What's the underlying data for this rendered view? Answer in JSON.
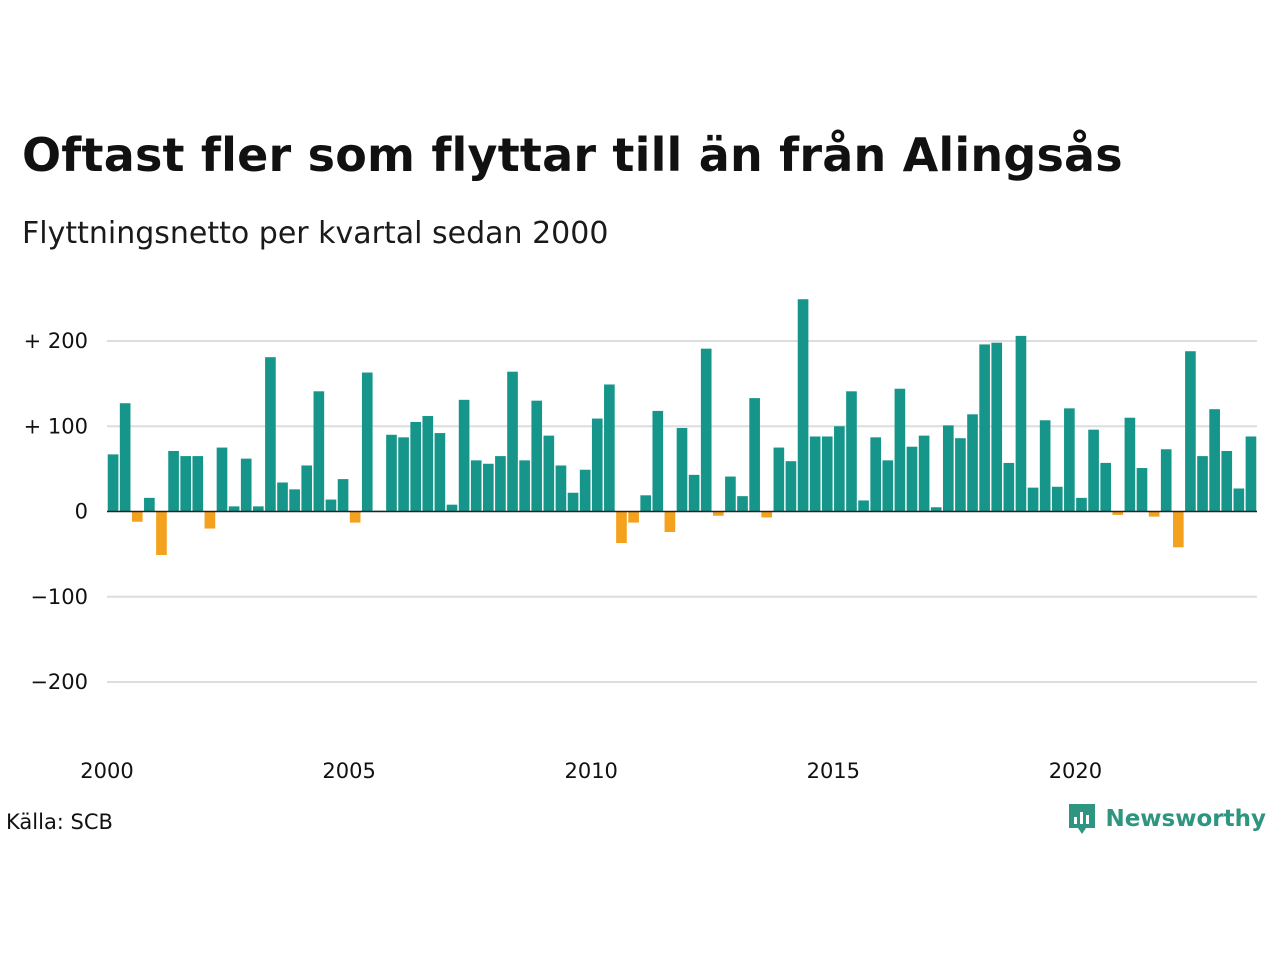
{
  "header": {
    "title": "Oftast fler som flyttar till än från Alingsås",
    "subtitle": "Flyttningsnetto per kvartal sedan 2000"
  },
  "footer": {
    "source": "Källa: SCB",
    "brand": "Newsworthy"
  },
  "colors": {
    "positive": "#16968a",
    "negative": "#f4a11d",
    "grid": "#dddddd",
    "zero_line": "#222222",
    "brand": "#2d9580"
  },
  "chart_data": {
    "type": "bar",
    "title": "Oftast fler som flyttar till än från Alingsås",
    "subtitle": "Flyttningsnetto per kvartal sedan 2000",
    "xlabel": "",
    "ylabel": "",
    "x_start": "2000 Q1",
    "x_tick_labels": [
      "2000",
      "2005",
      "2010",
      "2015",
      "2020"
    ],
    "y_ticks": [
      200,
      100,
      0,
      -100,
      -200
    ],
    "y_tick_labels": [
      "+ 200",
      "+ 100",
      "0",
      "−100",
      "−200"
    ],
    "ylim": [
      -270,
      250
    ],
    "grid": true,
    "legend": "none",
    "values": [
      67,
      127,
      -12,
      16,
      -51,
      71,
      65,
      65,
      -20,
      75,
      6,
      62,
      6,
      181,
      34,
      26,
      54,
      141,
      14,
      38,
      -13,
      163,
      1,
      90,
      87,
      105,
      112,
      92,
      8,
      131,
      60,
      56,
      65,
      164,
      60,
      130,
      89,
      54,
      22,
      49,
      109,
      149,
      -37,
      -13,
      19,
      118,
      -24,
      98,
      43,
      191,
      -5,
      41,
      18,
      133,
      -7,
      75,
      59,
      249,
      88,
      88,
      100,
      141,
      13,
      87,
      60,
      144,
      76,
      89,
      5,
      101,
      86,
      114,
      196,
      198,
      57,
      206,
      28,
      107,
      29,
      121,
      16,
      96,
      57,
      -4,
      110,
      51,
      -6,
      73,
      -42,
      188,
      65,
      120,
      71,
      27,
      88
    ]
  }
}
